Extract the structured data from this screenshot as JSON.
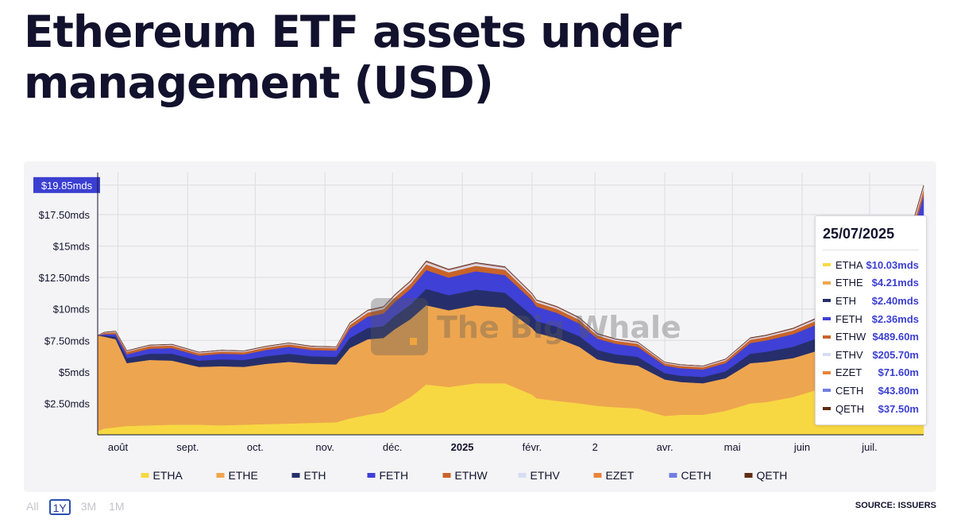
{
  "title": "Ethereum ETF assets under management (USD)",
  "range_buttons": [
    {
      "label": "All",
      "active": false
    },
    {
      "label": "1Y",
      "active": true
    },
    {
      "label": "3M",
      "active": false
    },
    {
      "label": "1M",
      "active": false
    }
  ],
  "source": "SOURCE: ISSUERS",
  "watermark": "The Big Whale",
  "tooltip": {
    "date": "25/07/2025",
    "rows": [
      {
        "name": "ETHA",
        "value": "$10.03mds"
      },
      {
        "name": "ETHE",
        "value": "$4.21mds"
      },
      {
        "name": "ETH",
        "value": "$2.40mds"
      },
      {
        "name": "FETH",
        "value": "$2.36mds"
      },
      {
        "name": "ETHW",
        "value": "$489.60m"
      },
      {
        "name": "ETHV",
        "value": "$205.70m"
      },
      {
        "name": "EZET",
        "value": "$71.60m"
      },
      {
        "name": "CETH",
        "value": "$43.80m"
      },
      {
        "name": "QETH",
        "value": "$37.50m"
      }
    ]
  },
  "chart_data": {
    "type": "area",
    "stacked": true,
    "title": "Ethereum ETF assets under management (USD)",
    "y_unit": "USD billions (mds)",
    "ylim": [
      0,
      20.85
    ],
    "y_ticks": [
      {
        "value": 2.5,
        "label": "$2.50mds"
      },
      {
        "value": 5,
        "label": "$5mds"
      },
      {
        "value": 7.5,
        "label": "$7.50mds"
      },
      {
        "value": 10,
        "label": "$10mds"
      },
      {
        "value": 12.5,
        "label": "$12.50mds"
      },
      {
        "value": 15,
        "label": "$15mds"
      },
      {
        "value": 17.5,
        "label": "$17.50mds"
      }
    ],
    "highlight_tick": {
      "value": 19.85,
      "label": "$19.85mds",
      "color": "#3b3fd1"
    },
    "x_ticks": [
      {
        "date": "2024-08-01",
        "label": "août",
        "bold": false
      },
      {
        "date": "2024-09-01",
        "label": "sept.",
        "bold": false
      },
      {
        "date": "2024-10-01",
        "label": "oct.",
        "bold": false
      },
      {
        "date": "2024-11-01",
        "label": "nov.",
        "bold": false
      },
      {
        "date": "2024-12-01",
        "label": "déc.",
        "bold": false
      },
      {
        "date": "2025-01-01",
        "label": "2025",
        "bold": true
      },
      {
        "date": "2025-02-01",
        "label": "févr.",
        "bold": false
      },
      {
        "date": "2025-03-01",
        "label": "2",
        "bold": false
      },
      {
        "date": "2025-04-01",
        "label": "avr.",
        "bold": false
      },
      {
        "date": "2025-05-01",
        "label": "mai",
        "bold": false
      },
      {
        "date": "2025-06-01",
        "label": "juin",
        "bold": false
      },
      {
        "date": "2025-07-01",
        "label": "juil.",
        "bold": false
      }
    ],
    "grid": true,
    "legend_position": "bottom",
    "x": [
      "2024-07-23",
      "2024-07-26",
      "2024-07-31",
      "2024-08-05",
      "2024-08-15",
      "2024-08-25",
      "2024-09-06",
      "2024-09-16",
      "2024-09-26",
      "2024-10-06",
      "2024-10-16",
      "2024-10-26",
      "2024-11-06",
      "2024-11-12",
      "2024-11-20",
      "2024-11-27",
      "2024-12-02",
      "2024-12-09",
      "2024-12-16",
      "2024-12-26",
      "2025-01-07",
      "2025-01-20",
      "2025-02-01",
      "2025-02-03",
      "2025-02-12",
      "2025-02-22",
      "2025-03-02",
      "2025-03-10",
      "2025-03-20",
      "2025-04-01",
      "2025-04-08",
      "2025-04-18",
      "2025-04-28",
      "2025-05-09",
      "2025-05-16",
      "2025-05-28",
      "2025-06-08",
      "2025-06-20",
      "2025-06-30",
      "2025-07-08",
      "2025-07-14",
      "2025-07-20",
      "2025-07-25"
    ],
    "series": [
      {
        "name": "ETHA",
        "color": "#f7d843",
        "values": [
          0.3,
          0.5,
          0.6,
          0.7,
          0.75,
          0.8,
          0.8,
          0.75,
          0.8,
          0.85,
          0.9,
          0.95,
          1.0,
          1.3,
          1.6,
          1.8,
          2.3,
          3.0,
          4.0,
          3.8,
          4.1,
          4.1,
          3.2,
          2.9,
          2.7,
          2.5,
          2.3,
          2.2,
          2.1,
          1.5,
          1.6,
          1.6,
          1.9,
          2.5,
          2.6,
          3.0,
          3.6,
          3.5,
          3.6,
          4.5,
          5.5,
          8.0,
          10.03
        ]
      },
      {
        "name": "ETHE",
        "color": "#eea54f",
        "values": [
          7.6,
          7.3,
          7.0,
          5.0,
          5.2,
          5.1,
          4.6,
          4.7,
          4.6,
          4.8,
          4.9,
          4.7,
          4.6,
          5.6,
          6.0,
          5.9,
          6.1,
          6.2,
          6.3,
          6.1,
          6.2,
          6.0,
          5.3,
          5.2,
          5.0,
          4.5,
          3.7,
          3.5,
          3.4,
          2.9,
          2.6,
          2.5,
          2.6,
          3.2,
          3.2,
          3.1,
          3.1,
          2.9,
          3.0,
          3.2,
          3.4,
          4.0,
          4.21
        ]
      },
      {
        "name": "ETH",
        "color": "#262f6b",
        "values": [
          0.0,
          0.1,
          0.2,
          0.4,
          0.5,
          0.55,
          0.5,
          0.55,
          0.55,
          0.6,
          0.65,
          0.6,
          0.6,
          0.8,
          0.9,
          0.95,
          1.05,
          1.15,
          1.3,
          1.2,
          1.25,
          1.2,
          1.0,
          0.95,
          0.9,
          0.85,
          0.75,
          0.7,
          0.7,
          0.5,
          0.5,
          0.5,
          0.55,
          0.75,
          0.8,
          0.9,
          1.0,
          1.0,
          1.1,
          1.3,
          1.6,
          2.0,
          2.4
        ]
      },
      {
        "name": "FETH",
        "color": "#3f40d6",
        "values": [
          0.0,
          0.1,
          0.2,
          0.3,
          0.4,
          0.45,
          0.4,
          0.45,
          0.45,
          0.5,
          0.55,
          0.5,
          0.5,
          0.75,
          0.9,
          1.0,
          1.1,
          1.25,
          1.5,
          1.4,
          1.45,
          1.4,
          1.2,
          1.15,
          1.1,
          1.0,
          0.9,
          0.85,
          0.8,
          0.6,
          0.6,
          0.6,
          0.65,
          0.85,
          0.9,
          1.0,
          1.1,
          1.0,
          1.1,
          1.3,
          1.6,
          2.0,
          2.36
        ]
      },
      {
        "name": "ETHW",
        "color": "#c8642a",
        "values": [
          0.0,
          0.1,
          0.15,
          0.2,
          0.2,
          0.2,
          0.18,
          0.18,
          0.18,
          0.2,
          0.2,
          0.2,
          0.2,
          0.28,
          0.32,
          0.34,
          0.36,
          0.4,
          0.45,
          0.42,
          0.44,
          0.42,
          0.35,
          0.33,
          0.32,
          0.3,
          0.25,
          0.24,
          0.24,
          0.18,
          0.18,
          0.18,
          0.2,
          0.26,
          0.27,
          0.3,
          0.33,
          0.32,
          0.35,
          0.38,
          0.42,
          0.46,
          0.4896
        ]
      },
      {
        "name": "ETHV",
        "color": "#d6dcf3",
        "values": [
          0.0,
          0.03,
          0.05,
          0.05,
          0.05,
          0.06,
          0.06,
          0.06,
          0.06,
          0.06,
          0.07,
          0.06,
          0.06,
          0.1,
          0.12,
          0.13,
          0.14,
          0.15,
          0.16,
          0.15,
          0.16,
          0.15,
          0.12,
          0.12,
          0.11,
          0.1,
          0.09,
          0.08,
          0.08,
          0.06,
          0.06,
          0.06,
          0.07,
          0.09,
          0.09,
          0.1,
          0.12,
          0.12,
          0.13,
          0.14,
          0.16,
          0.19,
          0.2057
        ]
      },
      {
        "name": "EZET",
        "color": "#e9833c",
        "values": [
          0.0,
          0.01,
          0.02,
          0.02,
          0.02,
          0.02,
          0.02,
          0.02,
          0.02,
          0.02,
          0.02,
          0.02,
          0.02,
          0.03,
          0.04,
          0.04,
          0.05,
          0.05,
          0.06,
          0.05,
          0.05,
          0.05,
          0.04,
          0.04,
          0.04,
          0.04,
          0.03,
          0.03,
          0.03,
          0.02,
          0.02,
          0.02,
          0.03,
          0.03,
          0.03,
          0.04,
          0.04,
          0.04,
          0.05,
          0.05,
          0.06,
          0.07,
          0.0716
        ]
      },
      {
        "name": "CETH",
        "color": "#6f7ee0",
        "values": [
          0.0,
          0.01,
          0.01,
          0.01,
          0.01,
          0.01,
          0.01,
          0.01,
          0.01,
          0.01,
          0.01,
          0.01,
          0.01,
          0.02,
          0.02,
          0.02,
          0.03,
          0.03,
          0.03,
          0.03,
          0.03,
          0.03,
          0.02,
          0.02,
          0.02,
          0.02,
          0.02,
          0.02,
          0.02,
          0.01,
          0.01,
          0.01,
          0.02,
          0.02,
          0.02,
          0.02,
          0.03,
          0.03,
          0.03,
          0.03,
          0.04,
          0.04,
          0.0438
        ]
      },
      {
        "name": "QETH",
        "color": "#5e2c12",
        "values": [
          0.0,
          0.01,
          0.01,
          0.01,
          0.01,
          0.01,
          0.01,
          0.01,
          0.01,
          0.01,
          0.01,
          0.01,
          0.01,
          0.02,
          0.02,
          0.02,
          0.02,
          0.02,
          0.03,
          0.02,
          0.02,
          0.02,
          0.02,
          0.02,
          0.02,
          0.02,
          0.02,
          0.01,
          0.01,
          0.01,
          0.01,
          0.01,
          0.01,
          0.02,
          0.02,
          0.02,
          0.02,
          0.02,
          0.02,
          0.03,
          0.03,
          0.03,
          0.0375
        ]
      }
    ]
  }
}
